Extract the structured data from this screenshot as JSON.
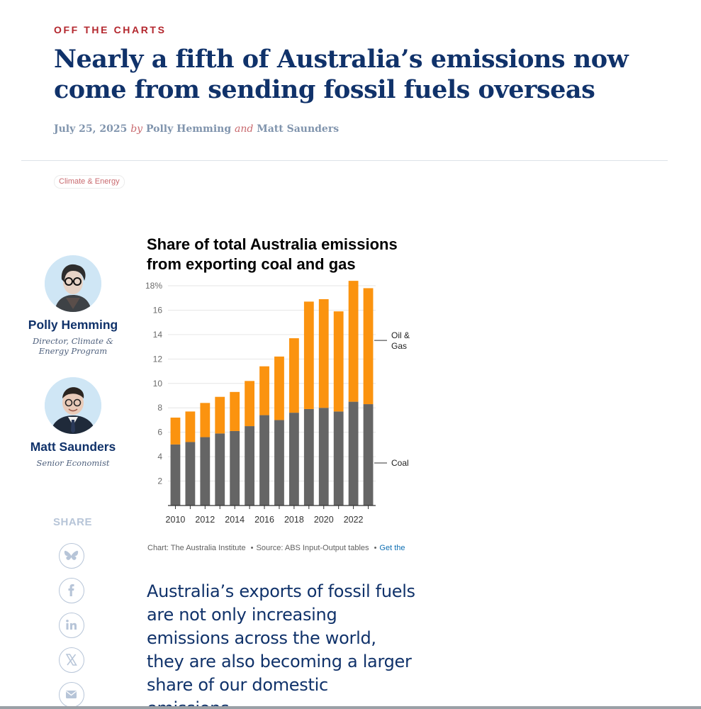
{
  "article": {
    "kicker": "OFF THE CHARTS",
    "headline": "Nearly a fifth of Australia’s emissions now come from sending fossil fuels overseas",
    "date": "July 25, 2025",
    "by": "by",
    "author1": "Polly Hemming",
    "and": "and",
    "author2": "Matt Saunders",
    "tag": "Climate & Energy",
    "paragraph": "Australia’s exports of fossil fuels are not only increasing emissions across the world, they are also becoming a larger share of our domestic emissions."
  },
  "authors": [
    {
      "name": "Polly Hemming",
      "role": "Director, Climate & Energy Program"
    },
    {
      "name": "Matt Saunders",
      "role": "Senior Economist"
    }
  ],
  "share": {
    "label": "SHARE",
    "buttons": [
      "bluesky-icon",
      "facebook-icon",
      "linkedin-icon",
      "x-icon",
      "email-icon"
    ]
  },
  "chart_source": {
    "credit": "Chart: The Australia Institute",
    "separator": "•",
    "source": "Source: ABS Input-Output tables",
    "link": "Get the"
  },
  "colors": {
    "coal": "#656565",
    "oil_gas": "#fb930f",
    "headline": "#10326a",
    "kicker": "#b3262d"
  },
  "chart_data": {
    "type": "bar",
    "stacked": true,
    "title": "Share of total Australia emissions from exporting coal and gas",
    "categories": [
      "2010",
      "2011",
      "2012",
      "2013",
      "2014",
      "2015",
      "2016",
      "2017",
      "2018",
      "2019",
      "2020",
      "2021",
      "2022",
      "2023"
    ],
    "x_tick_labels": [
      "2010",
      "2012",
      "2014",
      "2016",
      "2018",
      "2020",
      "2022"
    ],
    "y_ticks": [
      "2",
      "4",
      "6",
      "8",
      "10",
      "12",
      "14",
      "16",
      "18%"
    ],
    "ylim": [
      0,
      18
    ],
    "grid": true,
    "series": [
      {
        "name": "Coal",
        "color": "#656565",
        "values": [
          5.0,
          5.2,
          5.6,
          5.9,
          6.1,
          6.5,
          7.4,
          7.0,
          7.6,
          7.9,
          8.0,
          7.7,
          8.5,
          8.3
        ]
      },
      {
        "name": "Oil & Gas",
        "color": "#fb930f",
        "values": [
          2.2,
          2.5,
          2.8,
          3.0,
          3.2,
          3.7,
          4.0,
          5.2,
          6.1,
          8.8,
          8.9,
          8.2,
          9.9,
          9.5
        ]
      }
    ],
    "legend_placement": "right-inline"
  }
}
